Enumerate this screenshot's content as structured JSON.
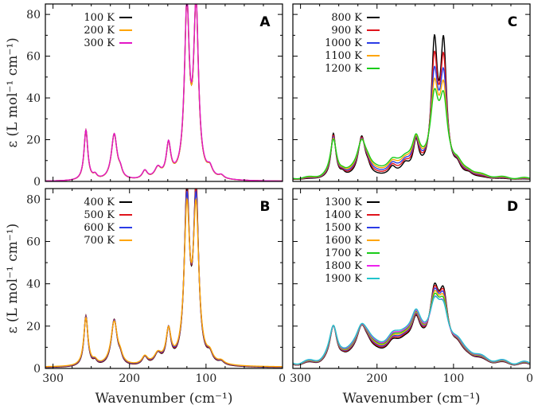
{
  "chart_data": {
    "type": "line",
    "xlabel": "Wavenumber (cm⁻¹)",
    "ylabel": "ε (L mol⁻¹ cm⁻¹)",
    "xlim": [
      310,
      0
    ],
    "ylim": [
      0,
      85
    ],
    "x_ticks": [
      "300",
      "200",
      "100",
      "0"
    ],
    "y_ticks": [
      "0",
      "20",
      "40",
      "60",
      "80"
    ],
    "base_features": {
      "peaks": [
        {
          "center": 257,
          "height": 24,
          "width": 3.0
        },
        {
          "center": 220,
          "height": 22,
          "width": 4.5
        },
        {
          "center": 245,
          "height": 2,
          "width": 3
        },
        {
          "center": 212,
          "height": 3,
          "width": 3
        },
        {
          "center": 180,
          "height": 4,
          "width": 4
        },
        {
          "center": 163,
          "height": 5,
          "width": 5
        },
        {
          "center": 149,
          "height": 16,
          "width": 3.5
        },
        {
          "center": 125,
          "height": 80,
          "width": 3.8
        },
        {
          "center": 113,
          "height": 80,
          "width": 3.8
        },
        {
          "center": 95,
          "height": 4,
          "width": 4
        },
        {
          "center": 80,
          "height": 1.5,
          "width": 4
        }
      ]
    },
    "panels": [
      {
        "letter": "A",
        "position": "top-left",
        "series": [
          {
            "name": "100 K",
            "color": "#000000",
            "peak_scale": 1.0,
            "broaden": 1.0,
            "baseline": 0,
            "hump": 0
          },
          {
            "name": "200 K",
            "color": "#ffa500",
            "peak_scale": 1.0,
            "broaden": 1.0,
            "baseline": 0,
            "hump": 0
          },
          {
            "name": "300 K",
            "color": "#e316c6",
            "peak_scale": 1.0,
            "broaden": 1.02,
            "baseline": 0,
            "hump": 0
          }
        ]
      },
      {
        "letter": "B",
        "position": "bottom-left",
        "series": [
          {
            "name": "400 K",
            "color": "#000000",
            "peak_scale": 1.0,
            "broaden": 1.03,
            "baseline": 0.3,
            "hump": 0
          },
          {
            "name": "500 K",
            "color": "#e0141c",
            "peak_scale": 0.97,
            "broaden": 1.06,
            "baseline": 0.4,
            "hump": 0
          },
          {
            "name": "600 K",
            "color": "#2b3ce6",
            "peak_scale": 0.93,
            "broaden": 1.1,
            "baseline": 0.5,
            "hump": 0
          },
          {
            "name": "700 K",
            "color": "#ffa500",
            "peak_scale": 0.88,
            "broaden": 1.15,
            "baseline": 0.6,
            "hump": 0
          }
        ]
      },
      {
        "letter": "C",
        "position": "top-right",
        "series": [
          {
            "name": "800 K",
            "color": "#000000",
            "peak_scale": 0.74,
            "broaden": 1.25,
            "baseline": 0.8,
            "hump": 1.5
          },
          {
            "name": "900 K",
            "color": "#e0141c",
            "peak_scale": 0.63,
            "broaden": 1.35,
            "baseline": 0.9,
            "hump": 2.5
          },
          {
            "name": "1000 K",
            "color": "#2b3ce6",
            "peak_scale": 0.53,
            "broaden": 1.45,
            "baseline": 1.0,
            "hump": 3.5
          },
          {
            "name": "1100 K",
            "color": "#ffa500",
            "peak_scale": 0.45,
            "broaden": 1.55,
            "baseline": 1.1,
            "hump": 4.5
          },
          {
            "name": "1200 K",
            "color": "#19cc19",
            "peak_scale": 0.38,
            "broaden": 1.65,
            "baseline": 1.2,
            "hump": 5.5
          }
        ]
      },
      {
        "letter": "D",
        "position": "bottom-right",
        "series": [
          {
            "name": "1300 K",
            "color": "#000000",
            "peak_scale": 0.3,
            "broaden": 1.8,
            "baseline": 1.6,
            "hump": 8
          },
          {
            "name": "1400 K",
            "color": "#e0141c",
            "peak_scale": 0.28,
            "broaden": 1.85,
            "baseline": 1.7,
            "hump": 8.5
          },
          {
            "name": "1500 K",
            "color": "#2b3ce6",
            "peak_scale": 0.26,
            "broaden": 1.9,
            "baseline": 1.8,
            "hump": 9
          },
          {
            "name": "1600 K",
            "color": "#ffa500",
            "peak_scale": 0.24,
            "broaden": 1.95,
            "baseline": 1.9,
            "hump": 9.5
          },
          {
            "name": "1700 K",
            "color": "#19cc19",
            "peak_scale": 0.22,
            "broaden": 2.0,
            "baseline": 2.0,
            "hump": 10
          },
          {
            "name": "1800 K",
            "color": "#ee22ee",
            "peak_scale": 0.2,
            "broaden": 2.05,
            "baseline": 2.1,
            "hump": 10.5
          },
          {
            "name": "1900 K",
            "color": "#22c4cc",
            "peak_scale": 0.19,
            "broaden": 2.1,
            "baseline": 2.2,
            "hump": 11
          }
        ]
      }
    ]
  }
}
